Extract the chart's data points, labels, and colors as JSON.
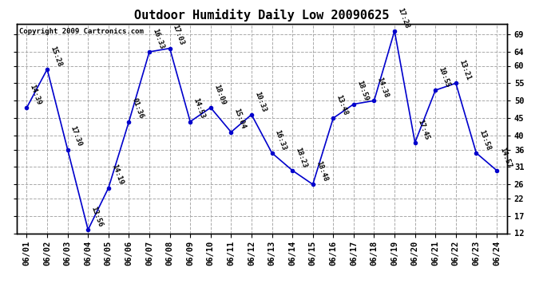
{
  "title": "Outdoor Humidity Daily Low 20090625",
  "copyright": "Copyright 2009 Cartronics.com",
  "dates": [
    "06/01",
    "06/02",
    "06/03",
    "06/04",
    "06/05",
    "06/06",
    "06/07",
    "06/08",
    "06/09",
    "06/10",
    "06/11",
    "06/12",
    "06/13",
    "06/14",
    "06/15",
    "06/16",
    "06/17",
    "06/18",
    "06/19",
    "06/20",
    "06/21",
    "06/22",
    "06/23",
    "06/24"
  ],
  "values": [
    48,
    59,
    36,
    13,
    25,
    44,
    64,
    65,
    44,
    48,
    41,
    46,
    35,
    30,
    26,
    45,
    49,
    50,
    70,
    38,
    53,
    55,
    35,
    30
  ],
  "labels": [
    "14:39",
    "15:28",
    "17:30",
    "13:56",
    "14:19",
    "01:36",
    "16:33",
    "17:03",
    "14:53",
    "18:09",
    "15:04",
    "10:33",
    "16:33",
    "18:23",
    "18:48",
    "13:48",
    "18:59",
    "14:38",
    "17:28",
    "17:45",
    "10:55",
    "13:21",
    "13:58",
    "14:57"
  ],
  "line_color": "#0000cc",
  "marker_color": "#0000cc",
  "background_color": "#ffffff",
  "grid_color": "#aaaaaa",
  "title_fontsize": 11,
  "label_fontsize": 6.5,
  "tick_fontsize": 7.5,
  "copyright_fontsize": 6.5,
  "ylim": [
    12,
    72
  ],
  "yticks": [
    12,
    17,
    22,
    26,
    31,
    36,
    40,
    45,
    50,
    55,
    60,
    64,
    69
  ]
}
